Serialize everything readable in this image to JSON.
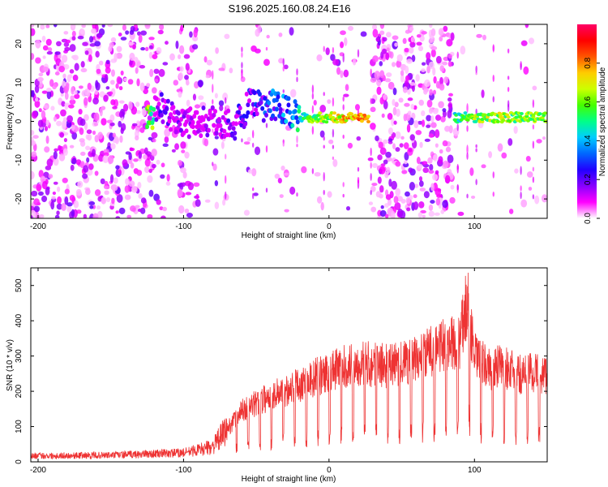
{
  "title": "S196.2025.160.08.24.E16",
  "chart_data": [
    {
      "type": "heatmap",
      "xlabel": "Height of straight line (km)",
      "ylabel": "Frequency (Hz)",
      "xlim": [
        -205,
        150
      ],
      "ylim": [
        -25,
        25
      ],
      "xticks": [
        -200,
        -100,
        0,
        100
      ],
      "yticks": [
        -20,
        -10,
        0,
        10,
        20
      ],
      "colorbar": {
        "label": "Normalized spectral amplitude",
        "range": [
          0,
          1
        ],
        "ticks": [
          "0.0",
          "0.2",
          "0.4",
          "0.6",
          "0.8"
        ],
        "colormap": [
          "#ffffff",
          "#ff00ff",
          "#8800ff",
          "#2200ff",
          "#0066ff",
          "#00ccff",
          "#00ff88",
          "#44ff00",
          "#ccff00",
          "#ffcc00",
          "#ff5500",
          "#ff0000",
          "#ff0066"
        ]
      },
      "signal_ridge": [
        {
          "x": -120,
          "freq": 4,
          "amp": 0.25
        },
        {
          "x": -100,
          "freq": 0,
          "amp": 0.2
        },
        {
          "x": -80,
          "freq": 0,
          "amp": 0.2
        },
        {
          "x": -65,
          "freq": -1,
          "amp": 0.25
        },
        {
          "x": -55,
          "freq": 4,
          "amp": 0.3
        },
        {
          "x": -40,
          "freq": 4,
          "amp": 0.4
        },
        {
          "x": -30,
          "freq": 3,
          "amp": 0.45
        },
        {
          "x": -20,
          "freq": 1,
          "amp": 0.55
        },
        {
          "x": -10,
          "freq": 1,
          "amp": 0.7
        },
        {
          "x": 0,
          "freq": 1,
          "amp": 0.75
        },
        {
          "x": 10,
          "freq": 1,
          "amp": 0.85
        },
        {
          "x": 20,
          "freq": 1,
          "amp": 0.9
        },
        {
          "x": 28,
          "freq": 1,
          "amp": 0.8
        },
        {
          "x": 90,
          "freq": 1,
          "amp": 0.6
        },
        {
          "x": 100,
          "freq": 1,
          "amp": 0.7
        },
        {
          "x": 115,
          "freq": 1,
          "amp": 0.75
        },
        {
          "x": 130,
          "freq": 1,
          "amp": 0.7
        },
        {
          "x": 150,
          "freq": 1,
          "amp": 0.7
        }
      ],
      "gaps_km": [
        [
          30,
          85
        ]
      ]
    },
    {
      "type": "line",
      "xlabel": "Height of straight line (km)",
      "ylabel": "SNR (10 * v/v)",
      "xlim": [
        -205,
        150
      ],
      "ylim": [
        0,
        550
      ],
      "xticks": [
        -200,
        -100,
        0,
        100
      ],
      "yticks": [
        0,
        100,
        200,
        300,
        400,
        500
      ],
      "color": "#ee3333",
      "envelope": {
        "x": [
          -205,
          -150,
          -100,
          -80,
          -60,
          -40,
          -20,
          0,
          20,
          40,
          60,
          70,
          80,
          90,
          95,
          100,
          110,
          120,
          130,
          140,
          150
        ],
        "y": [
          20,
          22,
          30,
          50,
          170,
          220,
          260,
          300,
          330,
          320,
          340,
          370,
          390,
          400,
          540,
          350,
          310,
          320,
          290,
          300,
          290
        ]
      },
      "dip_spacing_km": 8
    }
  ]
}
